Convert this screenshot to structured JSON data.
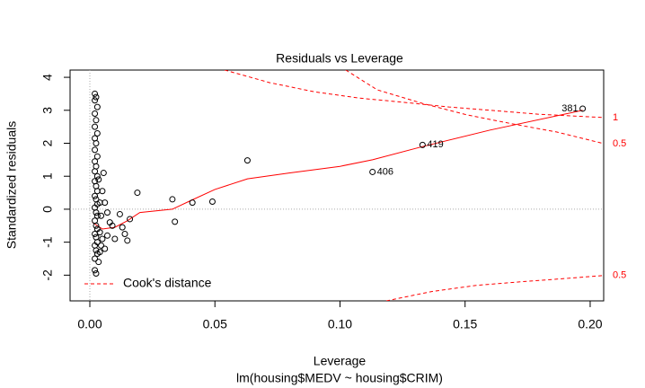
{
  "chart_data": {
    "type": "scatter",
    "title": "Residuals vs Leverage",
    "x_label": "Leverage",
    "subtitle": "lm(housing$MEDV ~ housing$CRIM)",
    "y_label": "Standardized residuals",
    "xlim": [
      -0.0079,
      0.2054
    ],
    "ylim": [
      -2.78,
      4.22
    ],
    "xticks": [
      {
        "value": 0,
        "label": "0.00"
      },
      0.05,
      {
        "value": 0.1,
        "label": "0.10"
      },
      0.15,
      {
        "value": 0.2,
        "label": "0.20"
      }
    ],
    "yticks": [
      -2,
      -1,
      0,
      1,
      2,
      3,
      4
    ],
    "reference_lines": {
      "x": 0,
      "y": 0
    },
    "point_color": "#000000",
    "x": [
      0.002,
      0.0025,
      0.002,
      0.003,
      0.002,
      0.0025,
      0.002,
      0.003,
      0.002,
      0.0025,
      0.002,
      0.003,
      0.002,
      0.0025,
      0.002,
      0.003,
      0.002,
      0.0025,
      0.003,
      0.002,
      0.0025,
      0.003,
      0.002,
      0.0025,
      0.003,
      0.002,
      0.0025,
      0.003,
      0.002,
      0.0025,
      0.003,
      0.002,
      0.0025,
      0.003,
      0.002,
      0.0035,
      0.002,
      0.0025,
      0.004,
      0.0045,
      0.005,
      0.004,
      0.0045,
      0.004,
      0.005,
      0.0055,
      0.0035,
      0.006,
      0.007,
      0.006,
      0.007,
      0.008,
      0.009,
      0.01,
      0.012,
      0.013,
      0.014,
      0.015,
      0.016,
      0.019,
      0.033,
      0.034,
      0.041,
      0.049,
      0.063,
      0.113,
      0.133,
      0.197
    ],
    "y": [
      3.5,
      3.4,
      3.3,
      3.1,
      2.9,
      2.7,
      2.5,
      2.3,
      2.15,
      2.0,
      1.8,
      1.6,
      1.45,
      1.3,
      1.15,
      1.0,
      0.85,
      0.7,
      0.55,
      0.4,
      0.3,
      0.15,
      0.05,
      -0.1,
      -0.2,
      -0.35,
      -0.5,
      -0.6,
      -0.75,
      -0.85,
      -1.0,
      -1.1,
      -1.25,
      -1.35,
      -1.5,
      -1.6,
      -1.85,
      -1.95,
      -1.3,
      -1.1,
      -0.9,
      -0.7,
      -0.2,
      0.2,
      0.55,
      1.1,
      0.9,
      -1.2,
      -0.8,
      0.2,
      -0.1,
      -0.4,
      -0.5,
      -0.9,
      -0.15,
      -0.55,
      -0.75,
      -0.95,
      -0.3,
      0.5,
      0.3,
      -0.38,
      0.2,
      0.23,
      1.48,
      1.13,
      1.95,
      3.05
    ],
    "labels": [
      null,
      null,
      null,
      null,
      null,
      null,
      null,
      null,
      null,
      null,
      null,
      null,
      null,
      null,
      null,
      null,
      null,
      null,
      null,
      null,
      null,
      null,
      null,
      null,
      null,
      null,
      null,
      null,
      null,
      null,
      null,
      null,
      null,
      null,
      null,
      null,
      null,
      null,
      null,
      null,
      null,
      null,
      null,
      null,
      null,
      null,
      null,
      null,
      null,
      null,
      null,
      null,
      null,
      null,
      null,
      null,
      null,
      null,
      null,
      null,
      null,
      null,
      null,
      null,
      null,
      "406",
      "419",
      "381"
    ],
    "smooth": {
      "color": "#ff0000",
      "x": [
        0.001,
        0.005,
        0.01,
        0.015,
        0.02,
        0.033,
        0.04,
        0.05,
        0.063,
        0.08,
        0.1,
        0.113,
        0.133,
        0.16,
        0.197
      ],
      "y": [
        -0.4,
        -0.6,
        -0.55,
        -0.35,
        -0.1,
        0,
        0.25,
        0.6,
        0.92,
        1.1,
        1.3,
        1.5,
        1.9,
        2.4,
        3.0
      ]
    },
    "cooks_color": "#ff0000",
    "cooks_contours": [
      {
        "label": "1",
        "x": [
          0.0539,
          0.0718,
          0.0898,
          0.1077,
          0.1257,
          0.1436,
          0.1616,
          0.1795,
          0.2054
        ],
        "y": [
          4.22,
          3.84,
          3.56,
          3.37,
          3.24,
          3.1,
          2.99,
          2.88,
          2.78
        ]
      },
      {
        "label": "0.5",
        "x": [
          0.1023,
          0.1149,
          0.1329,
          0.1508,
          0.1688,
          0.1867,
          0.2054
        ],
        "y": [
          4.22,
          3.62,
          3.21,
          2.86,
          2.59,
          2.34,
          1.99
        ]
      },
      {
        "label": "0.5",
        "x": [
          0.1185,
          0.1364,
          0.1544,
          0.1724,
          0.1903,
          0.2054
        ],
        "y": [
          -2.78,
          -2.5,
          -2.31,
          -2.2,
          -2.1,
          -2.01
        ]
      }
    ],
    "legend": {
      "label": "Cook's distance",
      "position": "bottom-left"
    }
  }
}
